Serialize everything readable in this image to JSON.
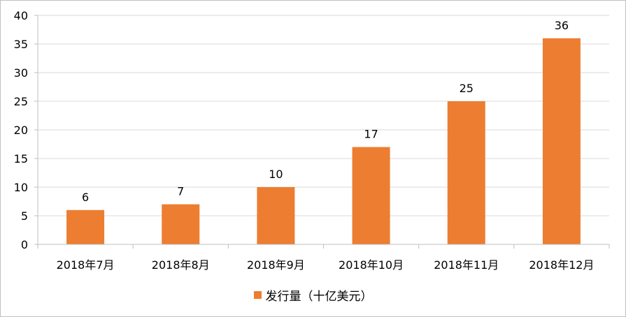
{
  "chart_data": {
    "type": "bar",
    "categories": [
      "2018年7月",
      "2018年8月",
      "2018年9月",
      "2018年10月",
      "2018年11月",
      "2018年12月"
    ],
    "series": [
      {
        "name": "发行量（十亿美元）",
        "values": [
          6,
          7,
          10,
          17,
          25,
          36
        ]
      }
    ],
    "data_labels": [
      "6",
      "7",
      "10",
      "17",
      "25",
      "36"
    ],
    "y_ticks": [
      "0",
      "5",
      "10",
      "15",
      "20",
      "25",
      "30",
      "35",
      "40"
    ],
    "ylim": [
      0,
      40
    ],
    "grid": true,
    "legend_position": "bottom",
    "colors": {
      "bar": "#ED7D31",
      "grid": "#D9D9D9",
      "axis": "#BFBFBF"
    }
  }
}
